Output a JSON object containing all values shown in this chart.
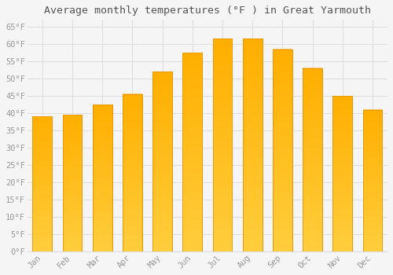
{
  "title": "Average monthly temperatures (°F ) in Great Yarmouth",
  "months": [
    "Jan",
    "Feb",
    "Mar",
    "Apr",
    "May",
    "Jun",
    "Jul",
    "Aug",
    "Sep",
    "Oct",
    "Nov",
    "Dec"
  ],
  "values": [
    39,
    39.5,
    42.5,
    45.5,
    52,
    57.5,
    61.5,
    61.5,
    58.5,
    53,
    45,
    41
  ],
  "bar_color_main": "#FFBE00",
  "bar_color_light": "#FFD95A",
  "bar_edge_color": "#E8960A",
  "background_color": "#F5F5F5",
  "plot_bg_color": "#F5F5F5",
  "grid_color": "#DDDDDD",
  "tick_label_color": "#999999",
  "title_color": "#555555",
  "ylim": [
    0,
    67
  ],
  "yticks": [
    0,
    5,
    10,
    15,
    20,
    25,
    30,
    35,
    40,
    45,
    50,
    55,
    60,
    65
  ],
  "title_fontsize": 9.5,
  "tick_fontsize": 7.5,
  "bar_width": 0.65
}
